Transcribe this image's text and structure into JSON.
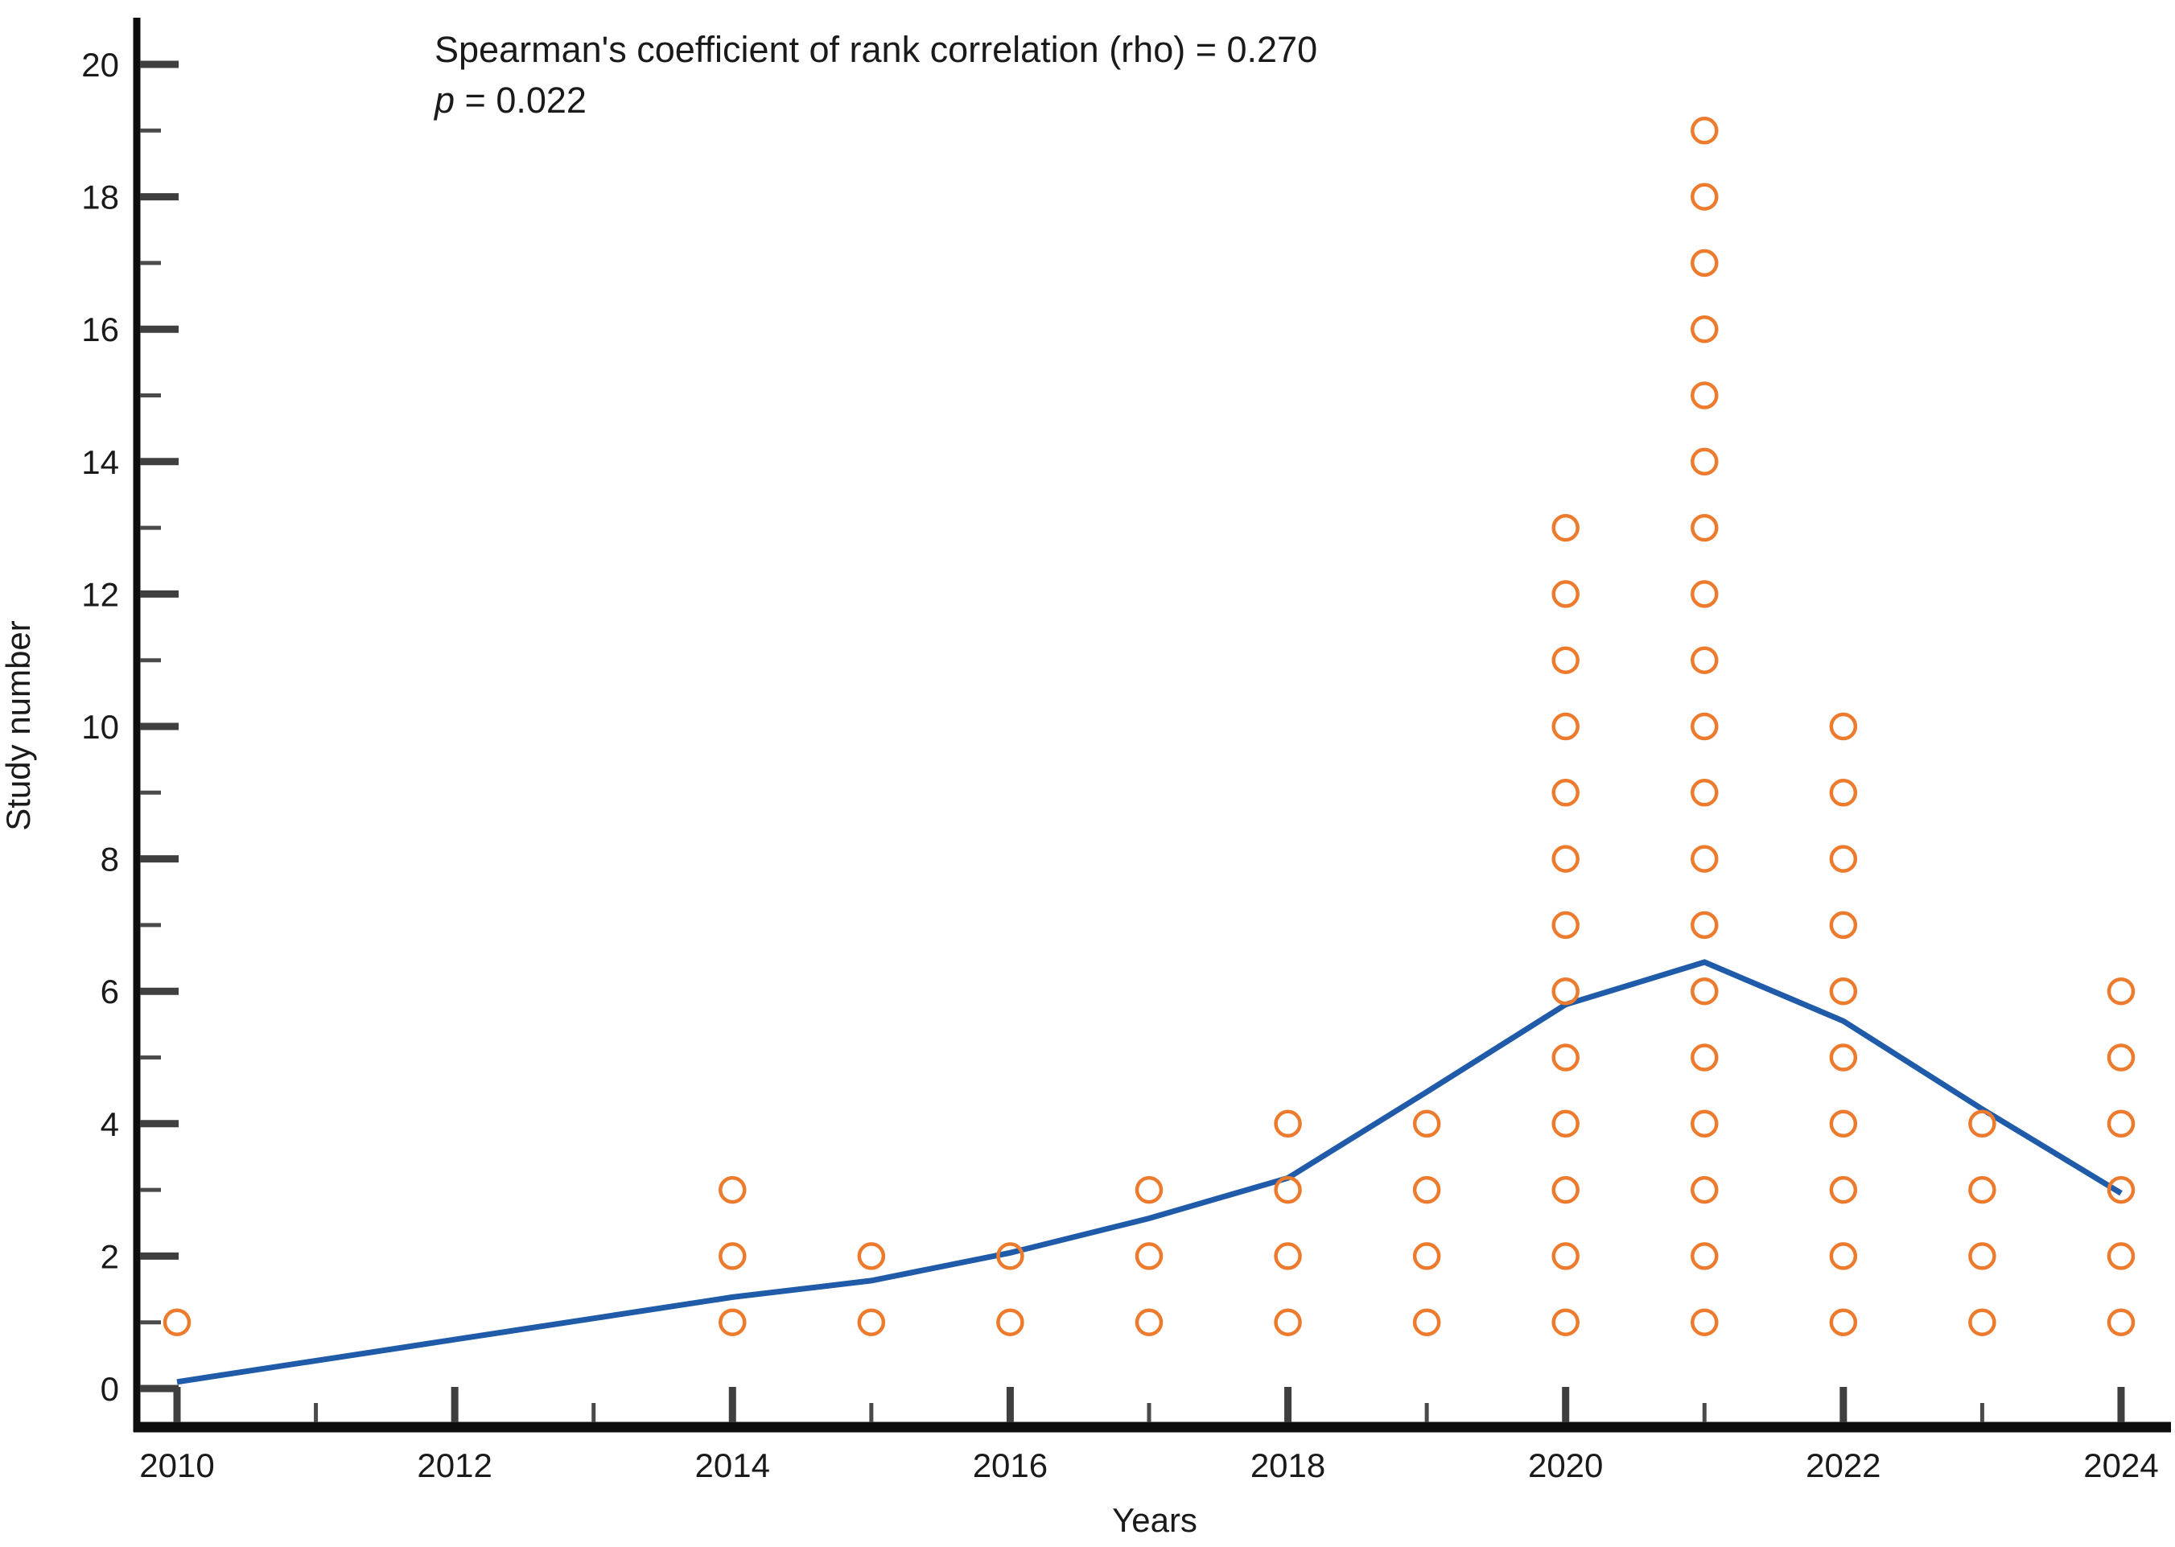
{
  "annotation": {
    "line1": "Spearman's coefficient of rank correlation (rho) = 0.270",
    "p_symbol": "p",
    "p_rest": " = 0.022"
  },
  "chart_data": {
    "type": "scatter",
    "title": "Spearman's coefficient of rank correlation (rho) = 0.270, p = 0.022",
    "xlabel": "Years",
    "ylabel": "Study number",
    "xlim": [
      2009.7,
      2024.4
    ],
    "ylim": [
      0,
      20.6
    ],
    "x_major_ticks": [
      2010,
      2012,
      2014,
      2016,
      2018,
      2020,
      2022,
      2024
    ],
    "x_minor_ticks": [
      2011,
      2013,
      2015,
      2017,
      2019,
      2021,
      2023
    ],
    "y_major_ticks": [
      0,
      2,
      4,
      6,
      8,
      10,
      12,
      14,
      16,
      18,
      20
    ],
    "y_minor_ticks": [
      1,
      3,
      5,
      7,
      9,
      11,
      13,
      15,
      17,
      19
    ],
    "grid": false,
    "legend": "none",
    "marker_note": "one open orange circle per study, stacked at integer study numbers 1..count for each year",
    "categories": [
      2010,
      2011,
      2012,
      2013,
      2014,
      2015,
      2016,
      2017,
      2018,
      2019,
      2020,
      2021,
      2022,
      2023,
      2024
    ],
    "studies_per_year": [
      1,
      0,
      0,
      0,
      3,
      2,
      2,
      3,
      4,
      4,
      13,
      19,
      10,
      4,
      6
    ],
    "series": [
      {
        "name": "smoothed trend line",
        "type": "line",
        "x": [
          2010,
          2011,
          2012,
          2013,
          2014,
          2015,
          2016,
          2017,
          2018,
          2019,
          2020,
          2021,
          2022,
          2023,
          2024
        ],
        "y": [
          0.1,
          0.42,
          0.74,
          1.06,
          1.38,
          1.63,
          2.05,
          2.57,
          3.18,
          4.48,
          5.8,
          6.44,
          5.55,
          4.22,
          2.95
        ]
      }
    ],
    "colors": {
      "circle_stroke": "#ED7B2E",
      "trend_line": "#1F5BA8",
      "axis": "#0d0d0d",
      "major_tick": "#3f3f3f",
      "minor_tick": "#4a4a4a",
      "text": "#1a1a1a",
      "background": "#ffffff"
    }
  }
}
